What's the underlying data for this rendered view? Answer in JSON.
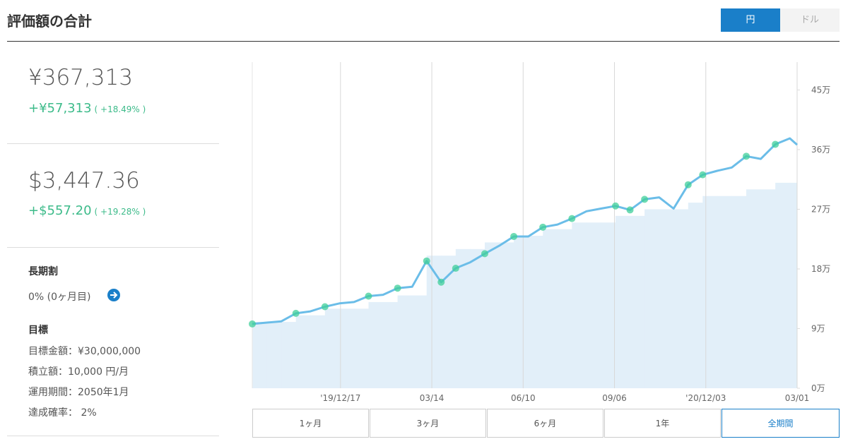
{
  "header": {
    "title": "評価額の合計",
    "currency_toggle": [
      "円",
      "ドル"
    ]
  },
  "summary": [
    {
      "amount": "¥367,313",
      "change": "+¥57,313",
      "change_pct": "( +18.49% )"
    },
    {
      "amount": "$3,447.36",
      "change": "+$557.20",
      "change_pct": "( +19.28% )"
    }
  ],
  "long_term": {
    "label": "長期割",
    "value": "0% (0ヶ月目)"
  },
  "goal": {
    "label": "目標",
    "items": [
      "目標金額：¥30,000,000",
      "積立額：10,000 円/月",
      "運用期間：2050年1月",
      "達成確率： 2%"
    ]
  },
  "range_buttons": [
    "1ヶ月",
    "3ヶ月",
    "6ヶ月",
    "1年",
    "全期間"
  ],
  "chart_data": {
    "type": "line",
    "x": [
      "2019-09-23",
      "2019-10-07",
      "2019-10-21",
      "2019-11-04",
      "2019-11-18",
      "2019-12-02",
      "2019-12-16",
      "2019-12-30",
      "2020-01-13",
      "2020-01-27",
      "2020-02-10",
      "2020-02-24",
      "2020-03-09",
      "2020-03-23",
      "2020-04-06",
      "2020-04-20",
      "2020-05-04",
      "2020-05-18",
      "2020-06-01",
      "2020-06-15",
      "2020-06-29",
      "2020-07-13",
      "2020-07-27",
      "2020-08-10",
      "2020-08-24",
      "2020-09-07",
      "2020-09-21",
      "2020-10-05",
      "2020-10-19",
      "2020-11-02",
      "2020-11-16",
      "2020-11-30",
      "2020-12-14",
      "2020-12-28",
      "2021-01-11",
      "2021-01-25",
      "2021-02-08",
      "2021-02-22",
      "2021-03-01"
    ],
    "line": {
      "color": "#6bbde8",
      "values": [
        97000,
        99000,
        101000,
        113000,
        116000,
        123000,
        128000,
        130000,
        139000,
        141000,
        151000,
        153000,
        192000,
        160000,
        181000,
        190000,
        203000,
        215000,
        229000,
        229000,
        243000,
        247000,
        256000,
        267000,
        271000,
        275000,
        269000,
        285000,
        288000,
        271000,
        307000,
        322000,
        328000,
        333000,
        350000,
        346000,
        368000,
        377000,
        367313
      ]
    },
    "area": {
      "color": "#e2eff9",
      "values": [
        100000,
        100000,
        100000,
        110000,
        110000,
        120000,
        120000,
        120000,
        130000,
        130000,
        140000,
        140000,
        200000,
        200000,
        210000,
        210000,
        220000,
        220000,
        230000,
        230000,
        240000,
        240000,
        250000,
        250000,
        250000,
        260000,
        260000,
        270000,
        270000,
        270000,
        280000,
        290000,
        290000,
        290000,
        300000,
        300000,
        310000,
        310000,
        310000
      ]
    },
    "markers": {
      "color": "#3fcf9a",
      "x": [
        "2019-09-23",
        "2019-11-04",
        "2019-12-02",
        "2020-01-13",
        "2020-02-10",
        "2020-03-09",
        "2020-03-23",
        "2020-04-06",
        "2020-05-04",
        "2020-06-01",
        "2020-06-29",
        "2020-07-27",
        "2020-09-07",
        "2020-09-21",
        "2020-10-05",
        "2020-11-16",
        "2020-11-30",
        "2021-01-11",
        "2021-02-08"
      ],
      "values": [
        97000,
        113000,
        123000,
        139000,
        151000,
        192000,
        160000,
        181000,
        203000,
        229000,
        243000,
        256000,
        275000,
        269000,
        285000,
        307000,
        322000,
        350000,
        368000
      ]
    },
    "xlim": [
      "2019-09-23",
      "2021-03-01"
    ],
    "xticks": [
      {
        "value": "2019-12-17",
        "label": "'19/12/17"
      },
      {
        "value": "2020-03-14",
        "label": "03/14"
      },
      {
        "value": "2020-06-10",
        "label": "06/10"
      },
      {
        "value": "2020-09-06",
        "label": "09/06"
      },
      {
        "value": "2020-12-03",
        "label": "'20/12/03"
      },
      {
        "value": "2021-03-01",
        "label": "03/01"
      }
    ],
    "ylim": [
      0,
      492000
    ],
    "yticks": [
      {
        "value": 0,
        "label": "0万"
      },
      {
        "value": 90000,
        "label": "9万"
      },
      {
        "value": 180000,
        "label": "18万"
      },
      {
        "value": 270000,
        "label": "27万"
      },
      {
        "value": 360000,
        "label": "36万"
      },
      {
        "value": 450000,
        "label": "45万"
      }
    ]
  }
}
